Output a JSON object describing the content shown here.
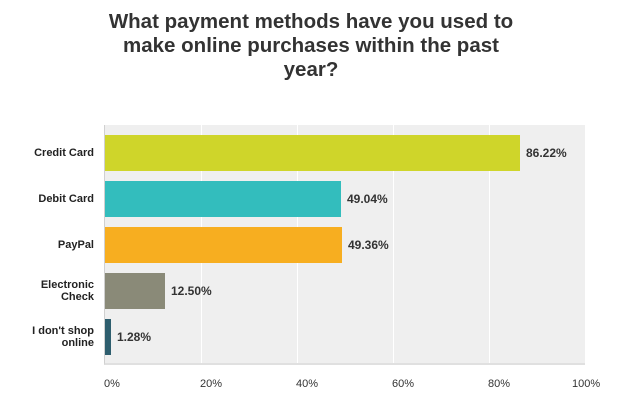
{
  "chart_data": {
    "type": "bar",
    "orientation": "horizontal",
    "title": "What payment methods have you used to make online purchases within the past year?",
    "title_lines": [
      "What payment methods have you used to",
      "make online purchases within the past",
      "year?"
    ],
    "categories": [
      "Credit Card",
      "Debit Card",
      "PayPal",
      "Electronic Check",
      "I don't shop online"
    ],
    "category_lines": [
      [
        "Credit Card"
      ],
      [
        "Debit Card"
      ],
      [
        "PayPal"
      ],
      [
        "Electronic",
        "Check"
      ],
      [
        "I don't shop",
        "online"
      ]
    ],
    "values": [
      86.22,
      49.04,
      49.36,
      12.5,
      1.28
    ],
    "value_labels": [
      "86.22%",
      "49.04%",
      "49.36%",
      "12.50%",
      "1.28%"
    ],
    "colors": [
      "#cfd52a",
      "#33bdbd",
      "#f7ae20",
      "#8a8a78",
      "#2e5e6e"
    ],
    "xlabel": "",
    "ylabel": "",
    "xlim": [
      0,
      100
    ],
    "x_ticks": [
      "0%",
      "20%",
      "40%",
      "60%",
      "80%",
      "100%"
    ],
    "grid": true,
    "legend": "none",
    "background": "#efefef"
  }
}
